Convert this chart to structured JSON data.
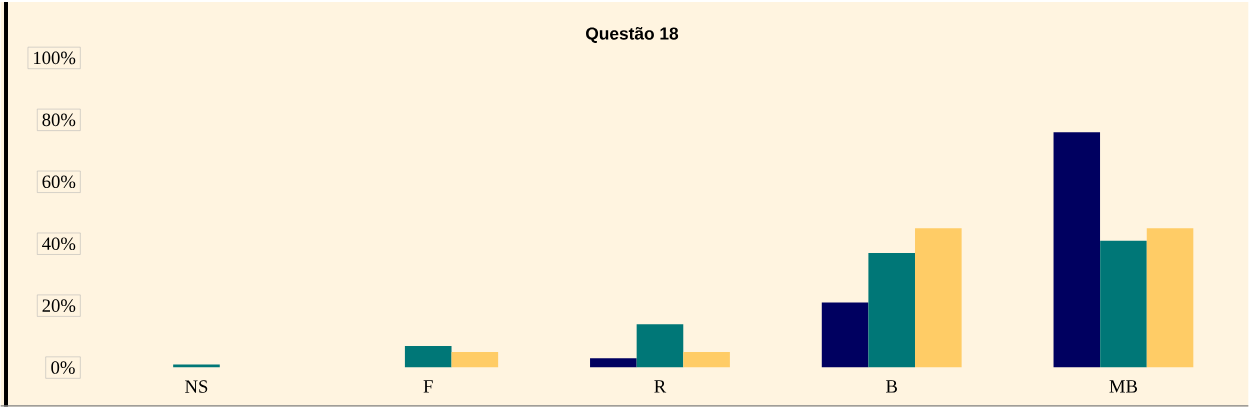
{
  "chart_data": {
    "type": "bar",
    "title": "Questão 18",
    "categories": [
      "NS",
      "F",
      "R",
      "B",
      "MB"
    ],
    "series": [
      {
        "color": "#000060",
        "values": [
          0,
          0,
          3,
          21,
          76
        ]
      },
      {
        "color": "#007777",
        "values": [
          1,
          7,
          14,
          37,
          41
        ]
      },
      {
        "color": "#ffcc66",
        "values": [
          0,
          5,
          5,
          45,
          45
        ]
      }
    ],
    "ylim": [
      0,
      100
    ],
    "yticks": [
      {
        "value": 0,
        "label": "0%"
      },
      {
        "value": 20,
        "label": "20%"
      },
      {
        "value": 40,
        "label": "40%"
      },
      {
        "value": 60,
        "label": "60%"
      },
      {
        "value": 80,
        "label": "80%"
      },
      {
        "value": 100,
        "label": "100%"
      }
    ],
    "grid": false
  }
}
